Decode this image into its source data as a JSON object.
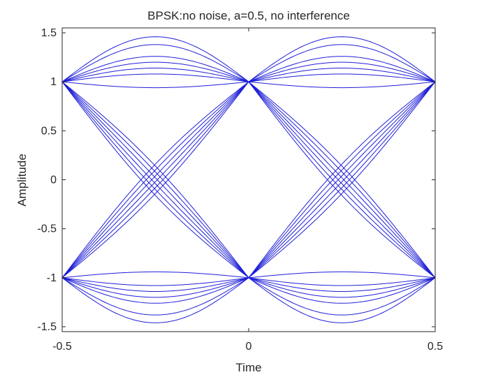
{
  "chart_data": {
    "type": "line",
    "title": "BPSK:no noise, a=0.5, no interference",
    "xlabel": "Time",
    "ylabel": "Amplitude",
    "xlim": [
      -0.5,
      0.5
    ],
    "ylim": [
      -1.55,
      1.55
    ],
    "xticks": [
      -0.5,
      0,
      0.5
    ],
    "xtick_labels": [
      "-0.5",
      "0",
      "0.5"
    ],
    "yticks": [
      1.5,
      1,
      0.5,
      0,
      -0.5,
      -1,
      -1.5
    ],
    "ytick_labels": [
      "1.5",
      "1",
      "0.5",
      "0",
      "-0.5",
      "-1",
      "-1.5"
    ],
    "grid": false,
    "legend": "none",
    "line_color": "#1f1fd8",
    "trace_period": 1.0,
    "trace_interval": [
      -0.5,
      0.5
    ],
    "trace_shift": 0.5,
    "series": [
      {
        "x": [
          -0.5,
          -0.25,
          0
        ],
        "values": [
          1,
          1.46,
          1
        ]
      },
      {
        "x": [
          -0.5,
          -0.25,
          0
        ],
        "values": [
          1,
          1.38,
          1
        ]
      },
      {
        "x": [
          -0.5,
          -0.25,
          0
        ],
        "values": [
          1,
          1.26,
          1
        ]
      },
      {
        "x": [
          -0.5,
          -0.25,
          0
        ],
        "values": [
          1,
          1.2,
          1
        ]
      },
      {
        "x": [
          -0.5,
          -0.25,
          0
        ],
        "values": [
          1,
          1.14,
          1
        ]
      },
      {
        "x": [
          -0.5,
          -0.25,
          0
        ],
        "values": [
          1,
          1.08,
          1
        ]
      },
      {
        "x": [
          -0.5,
          -0.25,
          0
        ],
        "values": [
          1,
          0.94,
          1
        ]
      },
      {
        "x": [
          -0.5,
          -0.25,
          0
        ],
        "values": [
          -1,
          -1.46,
          -1
        ]
      },
      {
        "x": [
          -0.5,
          -0.25,
          0
        ],
        "values": [
          -1,
          -1.38,
          -1
        ]
      },
      {
        "x": [
          -0.5,
          -0.25,
          0
        ],
        "values": [
          -1,
          -1.26,
          -1
        ]
      },
      {
        "x": [
          -0.5,
          -0.25,
          0
        ],
        "values": [
          -1,
          -1.2,
          -1
        ]
      },
      {
        "x": [
          -0.5,
          -0.25,
          0
        ],
        "values": [
          -1,
          -1.14,
          -1
        ]
      },
      {
        "x": [
          -0.5,
          -0.25,
          0
        ],
        "values": [
          -1,
          -1.08,
          -1
        ]
      },
      {
        "x": [
          -0.5,
          -0.25,
          0
        ],
        "values": [
          -1,
          -0.94,
          -1
        ]
      },
      {
        "x": [
          -0.5,
          -0.25,
          0
        ],
        "values": [
          1,
          0.14,
          -1
        ]
      },
      {
        "x": [
          -0.5,
          -0.25,
          0
        ],
        "values": [
          1,
          0.08,
          -1
        ]
      },
      {
        "x": [
          -0.5,
          -0.25,
          0
        ],
        "values": [
          1,
          0.02,
          -1
        ]
      },
      {
        "x": [
          -0.5,
          -0.25,
          0
        ],
        "values": [
          1,
          -0.04,
          -1
        ]
      },
      {
        "x": [
          -0.5,
          -0.25,
          0
        ],
        "values": [
          1,
          -0.1,
          -1
        ]
      },
      {
        "x": [
          -0.5,
          -0.25,
          0
        ],
        "values": [
          1,
          -0.16,
          -1
        ]
      },
      {
        "x": [
          -0.5,
          -0.25,
          0
        ],
        "values": [
          -1,
          0.16,
          1
        ]
      },
      {
        "x": [
          -0.5,
          -0.25,
          0
        ],
        "values": [
          -1,
          0.1,
          1
        ]
      },
      {
        "x": [
          -0.5,
          -0.25,
          0
        ],
        "values": [
          -1,
          0.04,
          1
        ]
      },
      {
        "x": [
          -0.5,
          -0.25,
          0
        ],
        "values": [
          -1,
          -0.02,
          1
        ]
      },
      {
        "x": [
          -0.5,
          -0.25,
          0
        ],
        "values": [
          -1,
          -0.08,
          1
        ]
      },
      {
        "x": [
          -0.5,
          -0.25,
          0
        ],
        "values": [
          -1,
          -0.14,
          1
        ]
      }
    ]
  }
}
